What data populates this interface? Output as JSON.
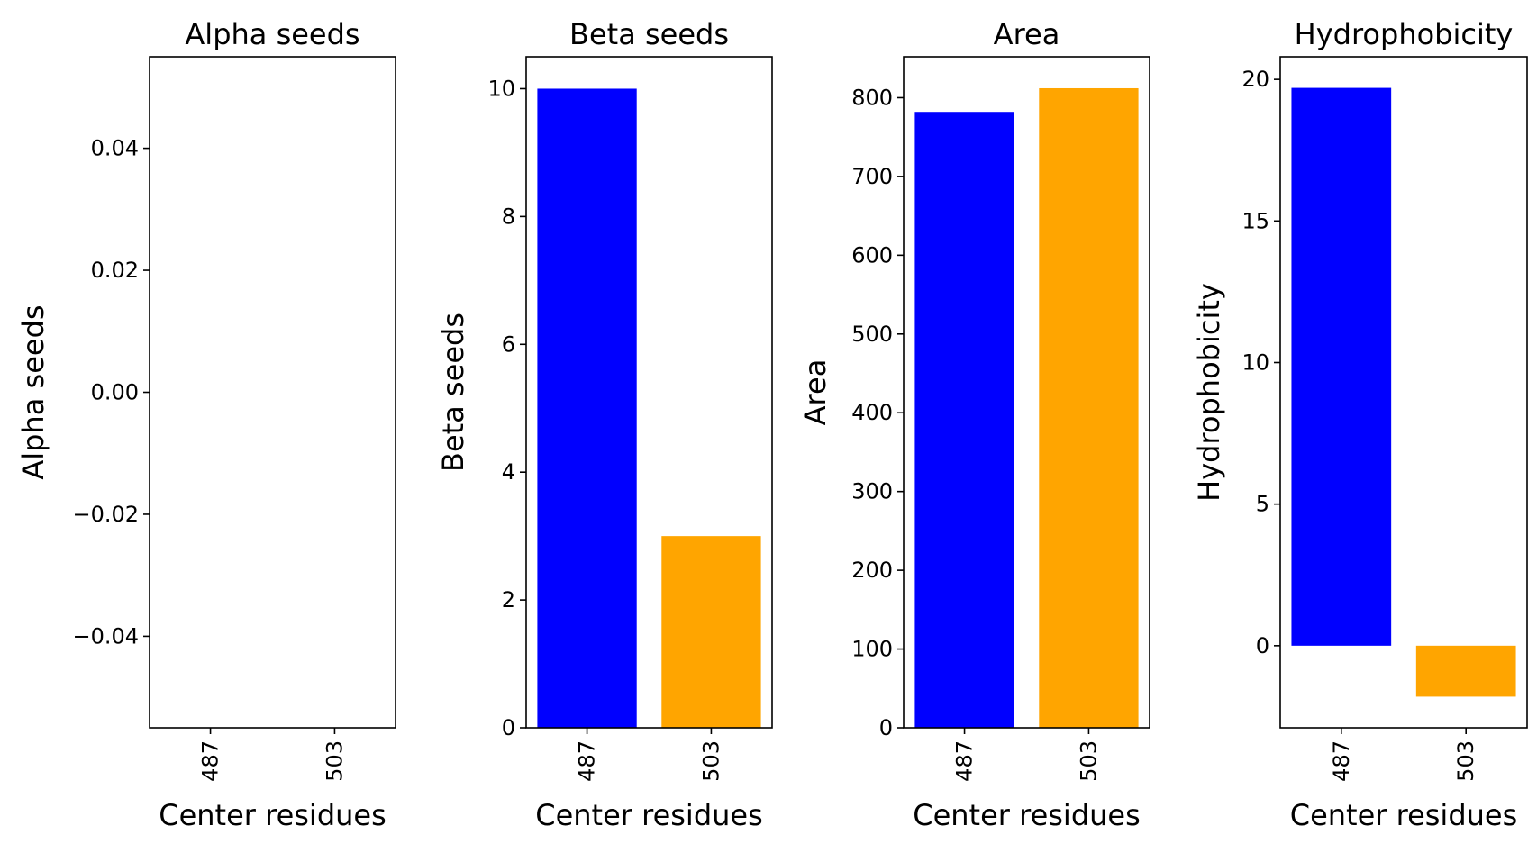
{
  "chart_data": [
    {
      "type": "bar",
      "title": "Alpha seeds",
      "xlabel": "Center residues",
      "ylabel": "Alpha seeds",
      "categories": [
        "487",
        "503"
      ],
      "values": [
        0,
        0
      ],
      "colors": [
        "#0000ff",
        "#ffa500"
      ],
      "ylim": [
        -0.055,
        0.055
      ],
      "yticks": [
        -0.04,
        -0.02,
        0.0,
        0.02,
        0.04
      ],
      "ytick_labels": [
        "−0.04",
        "−0.02",
        "0.00",
        "0.02",
        "0.04"
      ],
      "grid": false
    },
    {
      "type": "bar",
      "title": "Beta seeds",
      "xlabel": "Center residues",
      "ylabel": "Beta seeds",
      "categories": [
        "487",
        "503"
      ],
      "values": [
        10,
        3
      ],
      "colors": [
        "#0000ff",
        "#ffa500"
      ],
      "ylim": [
        0,
        10.5
      ],
      "yticks": [
        0,
        2,
        4,
        6,
        8,
        10
      ],
      "ytick_labels": [
        "0",
        "2",
        "4",
        "6",
        "8",
        "10"
      ],
      "grid": false
    },
    {
      "type": "bar",
      "title": "Area",
      "xlabel": "Center residues",
      "ylabel": "Area",
      "categories": [
        "487",
        "503"
      ],
      "values": [
        782,
        812
      ],
      "colors": [
        "#0000ff",
        "#ffa500"
      ],
      "ylim": [
        0,
        852
      ],
      "yticks": [
        0,
        100,
        200,
        300,
        400,
        500,
        600,
        700,
        800
      ],
      "ytick_labels": [
        "0",
        "100",
        "200",
        "300",
        "400",
        "500",
        "600",
        "700",
        "800"
      ],
      "grid": false
    },
    {
      "type": "bar",
      "title": "Hydrophobicity",
      "xlabel": "Center residues",
      "ylabel": "Hydrophobicity",
      "categories": [
        "487",
        "503"
      ],
      "values": [
        19.7,
        -1.8
      ],
      "colors": [
        "#0000ff",
        "#ffa500"
      ],
      "ylim": [
        -2.9,
        20.8
      ],
      "yticks": [
        0,
        5,
        10,
        15,
        20
      ],
      "ytick_labels": [
        "0",
        "5",
        "10",
        "15",
        "20"
      ],
      "grid": false
    }
  ]
}
